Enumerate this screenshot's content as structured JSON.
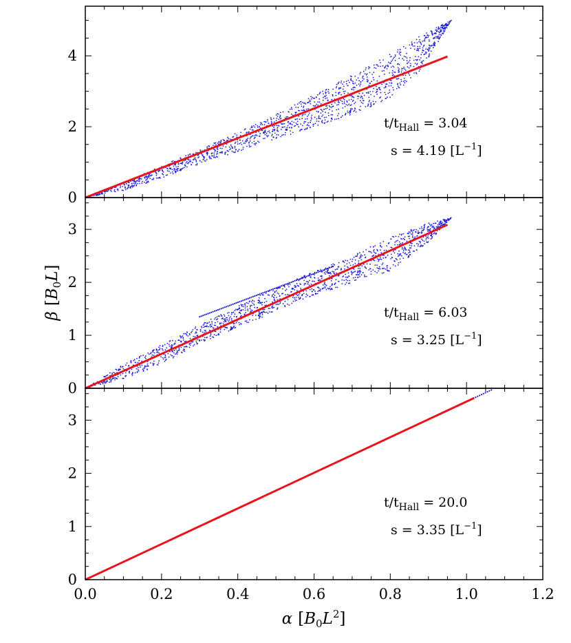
{
  "chart_data": [
    {
      "type": "scatter",
      "panel": "top",
      "xlim": [
        0.0,
        1.2
      ],
      "ylim": [
        0,
        5.4
      ],
      "yticks": [
        0,
        2,
        4
      ],
      "ytick_labels": [
        "0",
        "2",
        "4"
      ],
      "annotation_time": "t/t_Hall = 3.04",
      "annotation_time_prefix": "t/t",
      "annotation_time_sub": "Hall",
      "annotation_time_value": " = 3.04",
      "annotation_slope_text": "s = 4.19 [L⁻¹]",
      "annotation_slope_prefix": "s = 4.19 [L",
      "annotation_slope_sup": "−1",
      "annotation_slope_suffix": "]",
      "fit": {
        "slope": 4.19,
        "x_start": 0.0,
        "x_end": 0.95,
        "color": "#e8141c"
      },
      "scatter_color": "#1b1bd6",
      "cloud_upper_boundary": [
        [
          0.0,
          0.0
        ],
        [
          0.1,
          0.42
        ],
        [
          0.2,
          0.9
        ],
        [
          0.3,
          1.35
        ],
        [
          0.4,
          1.85
        ],
        [
          0.5,
          2.35
        ],
        [
          0.6,
          2.9
        ],
        [
          0.7,
          3.45
        ],
        [
          0.8,
          4.05
        ],
        [
          0.9,
          4.7
        ],
        [
          0.96,
          5.0
        ]
      ],
      "cloud_lower_boundary": [
        [
          0.0,
          0.0
        ],
        [
          0.1,
          0.2
        ],
        [
          0.2,
          0.55
        ],
        [
          0.3,
          0.95
        ],
        [
          0.4,
          1.3
        ],
        [
          0.5,
          1.65
        ],
        [
          0.6,
          2.0
        ],
        [
          0.7,
          2.35
        ],
        [
          0.8,
          2.8
        ],
        [
          0.88,
          3.6
        ],
        [
          0.96,
          5.0
        ]
      ]
    },
    {
      "type": "scatter",
      "panel": "middle",
      "xlim": [
        0.0,
        1.2
      ],
      "ylim": [
        0,
        3.6
      ],
      "yticks": [
        0,
        1,
        2,
        3
      ],
      "ytick_labels": [
        "0",
        "1",
        "2",
        "3"
      ],
      "annotation_time": "t/t_Hall = 6.03",
      "annotation_time_prefix": "t/t",
      "annotation_time_sub": "Hall",
      "annotation_time_value": " = 6.03",
      "annotation_slope_text": "s = 3.25 [L⁻¹]",
      "annotation_slope_prefix": "s = 3.25 [L",
      "annotation_slope_sup": "−1",
      "annotation_slope_suffix": "]",
      "fit": {
        "slope": 3.25,
        "x_start": 0.0,
        "x_end": 0.95,
        "color": "#e8141c"
      },
      "scatter_color": "#1b1bd6",
      "cloud_upper_boundary": [
        [
          0.0,
          0.0
        ],
        [
          0.1,
          0.45
        ],
        [
          0.2,
          0.82
        ],
        [
          0.3,
          1.2
        ],
        [
          0.4,
          1.55
        ],
        [
          0.5,
          1.9
        ],
        [
          0.6,
          2.2
        ],
        [
          0.7,
          2.5
        ],
        [
          0.8,
          2.85
        ],
        [
          0.9,
          3.12
        ],
        [
          0.96,
          3.22
        ]
      ],
      "cloud_lower_boundary": [
        [
          0.0,
          0.0
        ],
        [
          0.1,
          0.18
        ],
        [
          0.2,
          0.45
        ],
        [
          0.3,
          0.85
        ],
        [
          0.4,
          1.15
        ],
        [
          0.5,
          1.45
        ],
        [
          0.6,
          1.75
        ],
        [
          0.7,
          2.0
        ],
        [
          0.8,
          2.2
        ],
        [
          0.9,
          2.75
        ],
        [
          0.96,
          3.22
        ]
      ],
      "branch_line": {
        "x_start": 0.3,
        "x_end": 0.65,
        "y_start": 1.35,
        "y_end": 2.3
      }
    },
    {
      "type": "scatter",
      "panel": "bottom",
      "xlim": [
        0.0,
        1.2
      ],
      "ylim": [
        0,
        3.6
      ],
      "yticks": [
        0,
        1,
        2,
        3
      ],
      "ytick_labels": [
        "0",
        "1",
        "2",
        "3"
      ],
      "xticks": [
        0.0,
        0.2,
        0.4,
        0.6,
        0.8,
        1.0,
        1.2
      ],
      "xtick_labels": [
        "0.0",
        "0.2",
        "0.4",
        "0.6",
        "0.8",
        "1.0",
        "1.2"
      ],
      "annotation_time": "t/t_Hall = 20.0",
      "annotation_time_prefix": "t/t",
      "annotation_time_sub": "Hall",
      "annotation_time_value": " = 20.0",
      "annotation_slope_text": "s = 3.35 [L⁻¹]",
      "annotation_slope_prefix": "s = 3.35 [L",
      "annotation_slope_sup": "−1",
      "annotation_slope_suffix": "]",
      "fit": {
        "slope": 3.35,
        "x_start": 0.0,
        "x_end": 1.02,
        "color": "#e8141c"
      },
      "scatter_color": "#1b1bd6",
      "scatter_line": {
        "slope": 3.35,
        "x_start": 0.5,
        "x_end": 1.065
      }
    }
  ],
  "axes": {
    "xlabel_symbol": "α",
    "xlabel_unit_prefix": "[B",
    "xlabel_unit_sub": "0",
    "xlabel_unit_mid": "L",
    "xlabel_unit_sup": "2",
    "xlabel_unit_suffix": "]",
    "ylabel_symbol": "β",
    "ylabel_unit_prefix": "[B",
    "ylabel_unit_sub": "0",
    "ylabel_unit_suffix": "L]"
  }
}
